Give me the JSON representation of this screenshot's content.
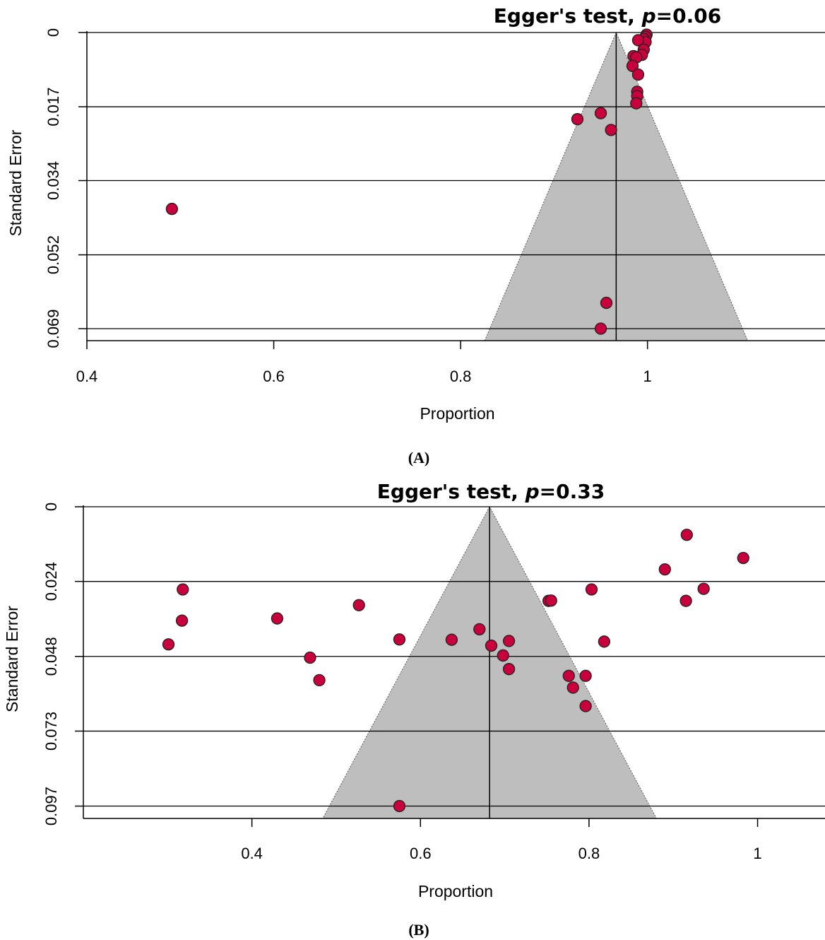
{
  "chart_data": [
    {
      "type": "scatter",
      "panel_label": "(A)",
      "title_prefix": "Egger's test, ",
      "title_p": "p",
      "title_suffix": "=0.06",
      "xlabel": "Proportion",
      "ylabel": "Standard Error",
      "x_ticks": [
        0.4,
        0.6,
        0.8,
        1.0
      ],
      "x_tick_labels": [
        "0.4",
        "0.6",
        "0.8",
        "1"
      ],
      "y_ticks": [
        0,
        0.0173,
        0.0345,
        0.0518,
        0.069
      ],
      "y_tick_labels": [
        "0",
        "0.017",
        "0.034",
        "0.052",
        "0.069"
      ],
      "xlim": [
        0.4,
        1.19
      ],
      "ylim": [
        0,
        0.0718
      ],
      "y_reversed": true,
      "grid": "horizontal",
      "pooled_estimate": 0.9665,
      "funnel_bottom_se": 0.0718,
      "funnel_half_width_per_se": 1.96,
      "point_color": "#c8003c",
      "funnel_color": "#bebebe",
      "points": [
        {
          "x": 0.999,
          "y": 0.0005
        },
        {
          "x": 0.998,
          "y": 0.001
        },
        {
          "x": 0.996,
          "y": 0.0015
        },
        {
          "x": 0.998,
          "y": 0.0022
        },
        {
          "x": 0.99,
          "y": 0.0018
        },
        {
          "x": 0.996,
          "y": 0.004
        },
        {
          "x": 0.994,
          "y": 0.0052
        },
        {
          "x": 0.985,
          "y": 0.0055
        },
        {
          "x": 0.988,
          "y": 0.0058
        },
        {
          "x": 0.984,
          "y": 0.0078
        },
        {
          "x": 0.99,
          "y": 0.0098
        },
        {
          "x": 0.989,
          "y": 0.0138
        },
        {
          "x": 0.989,
          "y": 0.0148
        },
        {
          "x": 0.988,
          "y": 0.0165
        },
        {
          "x": 0.95,
          "y": 0.0188
        },
        {
          "x": 0.925,
          "y": 0.0202
        },
        {
          "x": 0.961,
          "y": 0.0227
        },
        {
          "x": 0.491,
          "y": 0.0411
        },
        {
          "x": 0.956,
          "y": 0.063
        },
        {
          "x": 0.95,
          "y": 0.069
        }
      ]
    },
    {
      "type": "scatter",
      "panel_label": "(B)",
      "title_prefix": "Egger's test, ",
      "title_p": "p",
      "title_suffix": "=0.33",
      "xlabel": "Proportion",
      "ylabel": "Standard Error",
      "x_ticks": [
        0.4,
        0.6,
        0.8,
        1.0
      ],
      "x_tick_labels": [
        "0.4",
        "0.6",
        "0.8",
        "1"
      ],
      "y_ticks": [
        0,
        0.0242,
        0.0485,
        0.0727,
        0.097
      ],
      "y_tick_labels": [
        "0",
        "0.024",
        "0.048",
        "0.073",
        "0.097"
      ],
      "xlim": [
        0.2,
        1.08
      ],
      "ylim": [
        0,
        0.101
      ],
      "y_reversed": true,
      "grid": "horizontal",
      "pooled_estimate": 0.682,
      "funnel_bottom_se": 0.101,
      "funnel_half_width_per_se": 1.96,
      "point_color": "#c8003c",
      "funnel_color": "#bebebe",
      "points": [
        {
          "x": 0.916,
          "y": 0.0091
        },
        {
          "x": 0.983,
          "y": 0.0166
        },
        {
          "x": 0.89,
          "y": 0.0203
        },
        {
          "x": 0.936,
          "y": 0.0266
        },
        {
          "x": 0.803,
          "y": 0.0268
        },
        {
          "x": 0.915,
          "y": 0.0305
        },
        {
          "x": 0.752,
          "y": 0.0305
        },
        {
          "x": 0.755,
          "y": 0.0304
        },
        {
          "x": 0.318,
          "y": 0.0268
        },
        {
          "x": 0.527,
          "y": 0.0319
        },
        {
          "x": 0.317,
          "y": 0.0369
        },
        {
          "x": 0.43,
          "y": 0.0362
        },
        {
          "x": 0.67,
          "y": 0.0397
        },
        {
          "x": 0.575,
          "y": 0.043
        },
        {
          "x": 0.637,
          "y": 0.0431
        },
        {
          "x": 0.818,
          "y": 0.0437
        },
        {
          "x": 0.705,
          "y": 0.0435
        },
        {
          "x": 0.301,
          "y": 0.0446
        },
        {
          "x": 0.684,
          "y": 0.045
        },
        {
          "x": 0.698,
          "y": 0.0482
        },
        {
          "x": 0.469,
          "y": 0.0489
        },
        {
          "x": 0.705,
          "y": 0.0526
        },
        {
          "x": 0.796,
          "y": 0.0548
        },
        {
          "x": 0.776,
          "y": 0.0548
        },
        {
          "x": 0.48,
          "y": 0.0562
        },
        {
          "x": 0.781,
          "y": 0.0586
        },
        {
          "x": 0.796,
          "y": 0.0646
        },
        {
          "x": 0.575,
          "y": 0.097
        }
      ]
    }
  ]
}
